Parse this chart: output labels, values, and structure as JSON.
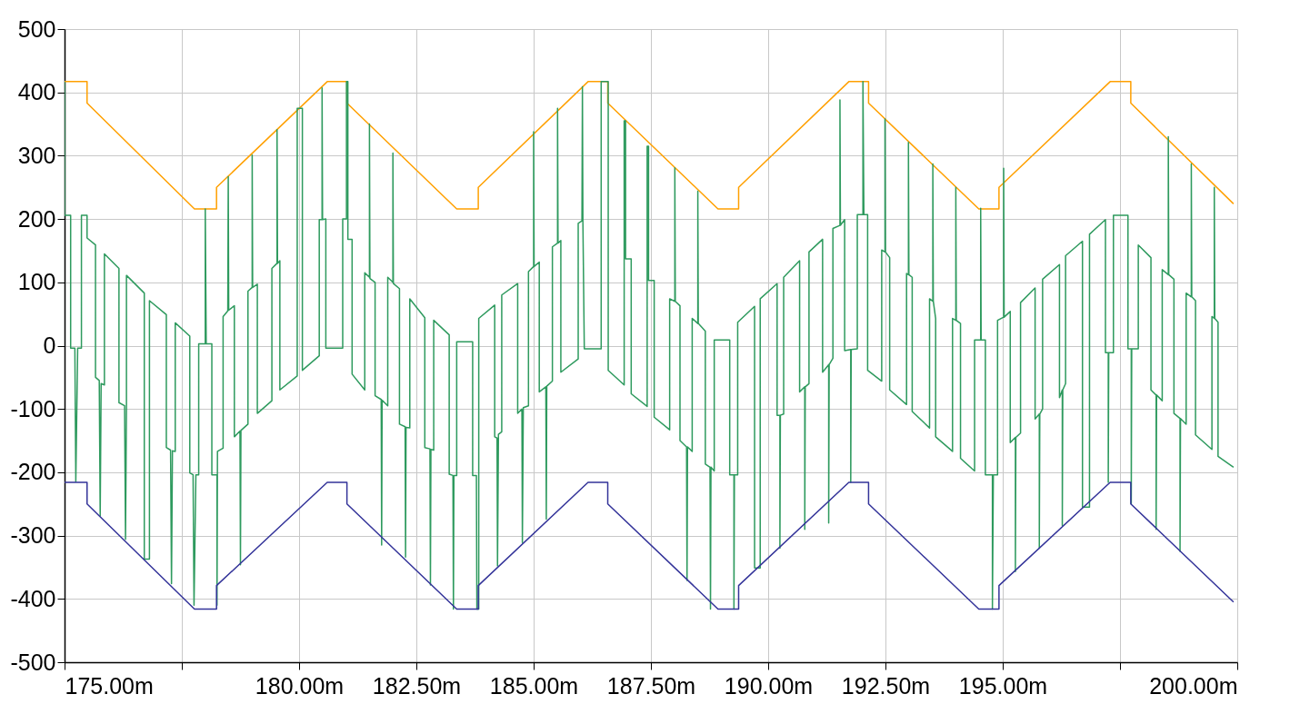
{
  "chart_data": {
    "type": "line",
    "xlim": [
      175,
      200
    ],
    "ylim": [
      -500,
      500
    ],
    "xticks": [
      {
        "value": 175,
        "label": "175.00m"
      },
      {
        "value": 177.5,
        "label": null
      },
      {
        "value": 180,
        "label": "180.00m"
      },
      {
        "value": 182.5,
        "label": "182.50m"
      },
      {
        "value": 185,
        "label": "185.00m"
      },
      {
        "value": 187.5,
        "label": "187.50m"
      },
      {
        "value": 190,
        "label": "190.00m"
      },
      {
        "value": 192.5,
        "label": "192.50m"
      },
      {
        "value": 195,
        "label": "195.00m"
      },
      {
        "value": 197.5,
        "label": null
      },
      {
        "value": 200,
        "label": "200.00m"
      }
    ],
    "yticks": [
      -500,
      -400,
      -300,
      -200,
      -100,
      0,
      100,
      200,
      300,
      400,
      500
    ],
    "grid": true,
    "series": [
      {
        "color": "#ffa000",
        "x": [
          175,
          175.48,
          175.48,
          177.77,
          178.24,
          178.24,
          180.6,
          181.02,
          181.02,
          183.36,
          183.82,
          183.82,
          186.16,
          186.58,
          186.58,
          188.93,
          189.37,
          189.37,
          191.72,
          192.14,
          192.14,
          194.49,
          194.92,
          194.92,
          197.29,
          197.73,
          197.73,
          199.92
        ],
        "values": [
          417,
          417,
          383,
          216,
          216,
          250,
          417,
          417,
          383,
          216,
          216,
          250,
          417,
          417,
          383,
          216,
          216,
          250,
          417,
          417,
          383,
          216,
          216,
          250,
          417,
          417,
          383,
          224
        ]
      },
      {
        "color": "#2e9a5e",
        "x": [
          175,
          175,
          175.13,
          175.13,
          175.22,
          175.24,
          175.28,
          175.36,
          175.36,
          175.48,
          175.48,
          175.66,
          175.66,
          175.74,
          175.76,
          175.78,
          175.85,
          175.85,
          176.16,
          176.16,
          176.28,
          176.3,
          176.32,
          176.32,
          176.7,
          176.7,
          176.81,
          176.81,
          177.17,
          177.17,
          177.26,
          177.28,
          177.3,
          177.36,
          177.36,
          177.67,
          177.67,
          177.74,
          177.76,
          177.8,
          177.86,
          177.86,
          178,
          178,
          178.02,
          178.14,
          178.14,
          178.25,
          178.25,
          178.26,
          178.38,
          178.38,
          178.48,
          178.49,
          178.5,
          178.62,
          178.62,
          178.74,
          178.75,
          178.76,
          178.91,
          178.91,
          179,
          179,
          179.01,
          179.11,
          179.11,
          179.42,
          179.42,
          179.53,
          179.53,
          179.54,
          179.59,
          179.59,
          179.96,
          179.96,
          180.07,
          180.07,
          180.43,
          180.43,
          180.49,
          180.49,
          180.5,
          180.57,
          180.57,
          180.93,
          180.93,
          181.01,
          181.01,
          181.04,
          181.04,
          181.13,
          181.13,
          181.4,
          181.4,
          181.5,
          181.5,
          181.51,
          181.62,
          181.62,
          181.75,
          181.76,
          181.77,
          181.89,
          181.89,
          182,
          182,
          182.01,
          182.14,
          182.14,
          182.26,
          182.27,
          182.28,
          182.36,
          182.36,
          182.68,
          182.68,
          182.79,
          182.8,
          182.81,
          182.87,
          182.87,
          183.2,
          183.2,
          183.28,
          183.29,
          183.3,
          183.36,
          183.36,
          183.7,
          183.7,
          183.78,
          183.79,
          183.83,
          183.83,
          184.17,
          184.17,
          184.22,
          184.23,
          184.25,
          184.32,
          184.32,
          184.66,
          184.66,
          184.75,
          184.76,
          184.78,
          184.89,
          184.89,
          185,
          185,
          185.01,
          185.12,
          185.12,
          185.26,
          185.27,
          185.28,
          185.4,
          185.4,
          185.51,
          185.51,
          185.52,
          185.58,
          185.58,
          185.95,
          185.95,
          186.03,
          186.04,
          186.05,
          186.08,
          186.44,
          186.44,
          186.59,
          186.59,
          186.93,
          186.93,
          186.96,
          186.96,
          187.08,
          187.08,
          187.42,
          187.42,
          187.45,
          187.45,
          187.57,
          187.57,
          187.9,
          187.9,
          188.01,
          188.01,
          188.02,
          188.12,
          188.12,
          188.26,
          188.27,
          188.28,
          188.38,
          188.38,
          188.5,
          188.5,
          188.51,
          188.66,
          188.66,
          188.76,
          188.77,
          188.78,
          188.85,
          188.85,
          189.18,
          189.18,
          189.27,
          189.27,
          189.28,
          189.35,
          189.35,
          189.71,
          189.71,
          189.83,
          189.83,
          190.19,
          190.19,
          190.25,
          190.25,
          190.26,
          190.33,
          190.33,
          190.67,
          190.67,
          190.78,
          190.78,
          190.79,
          190.87,
          190.87,
          191.16,
          191.16,
          191.29,
          191.29,
          191.3,
          191.38,
          191.38,
          191.53,
          191.53,
          191.54,
          191.63,
          191.63,
          191.76,
          191.76,
          191.77,
          191.9,
          191.9,
          192.02,
          192.02,
          192.04,
          192.12,
          192.12,
          192.42,
          192.42,
          192.49,
          192.49,
          192.5,
          192.59,
          192.59,
          192.95,
          192.95,
          192.99,
          192.99,
          193,
          193.07,
          193.07,
          193.44,
          193.44,
          193.51,
          193.51,
          193.52,
          193.57,
          193.57,
          193.93,
          193.93,
          194,
          194,
          194.01,
          194.1,
          194.1,
          194.4,
          194.4,
          194.53,
          194.53,
          194.54,
          194.63,
          194.63,
          194.78,
          194.78,
          194.8,
          194.89,
          194.89,
          195.02,
          195.02,
          195.03,
          195.16,
          195.16,
          195.27,
          195.27,
          195.28,
          195.38,
          195.38,
          195.69,
          195.69,
          195.78,
          195.78,
          195.79,
          195.85,
          195.85,
          196.21,
          196.21,
          196.27,
          196.27,
          196.28,
          196.34,
          196.34,
          196.7,
          196.7,
          196.85,
          196.85,
          197.19,
          197.19,
          197.25,
          197.25,
          197.26,
          197.36,
          197.36,
          197.67,
          197.67,
          197.74,
          197.74,
          197.75,
          197.89,
          197.89,
          198.16,
          198.16,
          198.27,
          198.27,
          198.28,
          198.4,
          198.4,
          198.53,
          198.53,
          198.54,
          198.65,
          198.65,
          198.78,
          198.78,
          198.79,
          198.91,
          198.91,
          199.02,
          199.02,
          199.03,
          199.11,
          199.11,
          199.46,
          199.46,
          199.51,
          199.51,
          199.52,
          199.59,
          199.59,
          199.92
        ],
        "values": [
          417,
          206,
          206,
          -4,
          -4,
          -215,
          -4,
          -4,
          206,
          206,
          170,
          159,
          -50,
          -55,
          -269,
          -60,
          -62,
          145,
          122,
          -90,
          -95,
          -306,
          -96,
          111,
          83,
          -337,
          -337,
          71,
          49,
          -161,
          -165,
          -376,
          -166,
          -167,
          36,
          15,
          -201,
          -204,
          -410,
          -204,
          -204,
          3,
          3,
          216,
          3,
          3,
          -204,
          -204,
          -410,
          -167,
          -162,
          46,
          55,
          267,
          56,
          63,
          -144,
          -135,
          -346,
          -134,
          -124,
          86,
          92,
          301,
          92,
          97,
          -107,
          -87,
          122,
          130,
          341,
          130,
          134,
          -70,
          -48,
          375,
          375,
          -39,
          -16,
          199,
          199,
          407,
          199,
          200,
          -4,
          -4,
          200,
          200,
          417,
          417,
          168,
          168,
          -45,
          -70,
          115,
          108,
          350,
          106,
          100,
          -79,
          -85,
          -315,
          -86,
          -95,
          108,
          100,
          304,
          98,
          90,
          -124,
          -128,
          -334,
          -129,
          -130,
          74,
          44,
          -161,
          -163,
          -378,
          -164,
          -165,
          40,
          17,
          -203,
          -205,
          -416,
          -205,
          -205,
          6,
          6,
          -205,
          -205,
          -416,
          -416,
          43,
          64,
          -144,
          -146,
          -348,
          -140,
          -136,
          80,
          98,
          -107,
          -100,
          -311,
          -98,
          -95,
          117,
          125,
          338,
          125,
          132,
          -73,
          -65,
          -274,
          -64,
          -56,
          156,
          162,
          375,
          162,
          166,
          -42,
          -21,
          193,
          197,
          409,
          197,
          -5,
          -5,
          417,
          417,
          -39,
          -62,
          355,
          355,
          137,
          137,
          -76,
          -96,
          315,
          315,
          103,
          103,
          -113,
          -133,
          74,
          70,
          281,
          70,
          63,
          -150,
          -160,
          -371,
          -160,
          -167,
          43,
          35,
          244,
          35,
          23,
          -187,
          -192,
          -416,
          -192,
          -198,
          9,
          9,
          -204,
          -204,
          -416,
          -204,
          -204,
          37,
          62,
          -351,
          -351,
          74,
          98,
          -110,
          -110,
          -320,
          -110,
          -108,
          108,
          134,
          -73,
          -65,
          -290,
          -65,
          -60,
          148,
          168,
          -42,
          -30,
          -280,
          -30,
          -20,
          185,
          190,
          388,
          190,
          199,
          -8,
          -6,
          -216,
          -6,
          -5,
          207,
          207,
          417,
          207,
          207,
          -39,
          -56,
          151,
          148,
          358,
          148,
          139,
          -70,
          -93,
          114,
          112,
          321,
          112,
          108,
          -104,
          -130,
          74,
          70,
          287,
          70,
          43,
          -144,
          -167,
          43,
          40,
          250,
          40,
          35,
          -178,
          -198,
          9,
          9,
          217,
          9,
          9,
          -204,
          -204,
          -416,
          -204,
          -204,
          40,
          45,
          280,
          45,
          54,
          -153,
          -145,
          -357,
          -145,
          -138,
          68,
          91,
          -116,
          -108,
          -320,
          -108,
          -100,
          105,
          128,
          -82,
          -70,
          -284,
          -70,
          -60,
          142,
          165,
          -255,
          -255,
          176,
          199,
          -11,
          -11,
          -216,
          -11,
          -11,
          206,
          206,
          -5,
          -5,
          -250,
          -5,
          -5,
          159,
          139,
          -70,
          -78,
          -290,
          -78,
          -87,
          120,
          112,
          330,
          112,
          105,
          -107,
          -115,
          -325,
          -115,
          -124,
          83,
          77,
          287,
          77,
          71,
          -141,
          -164,
          46,
          43,
          250,
          43,
          37,
          -175,
          -192
        ]
      },
      {
        "color": "#333399",
        "x": [
          175,
          175.48,
          175.48,
          177.77,
          178.24,
          178.24,
          180.6,
          181.02,
          181.02,
          183.36,
          183.82,
          183.82,
          186.16,
          186.58,
          186.58,
          188.93,
          189.37,
          189.37,
          191.72,
          192.14,
          192.14,
          194.49,
          194.92,
          194.92,
          197.29,
          197.73,
          197.73,
          199.92
        ],
        "values": [
          -216,
          -216,
          -250,
          -416,
          -416,
          -379,
          -216,
          -216,
          -250,
          -416,
          -416,
          -379,
          -216,
          -216,
          -250,
          -416,
          -416,
          -379,
          -216,
          -216,
          -250,
          -416,
          -416,
          -379,
          -216,
          -216,
          -250,
          -405
        ]
      }
    ]
  }
}
